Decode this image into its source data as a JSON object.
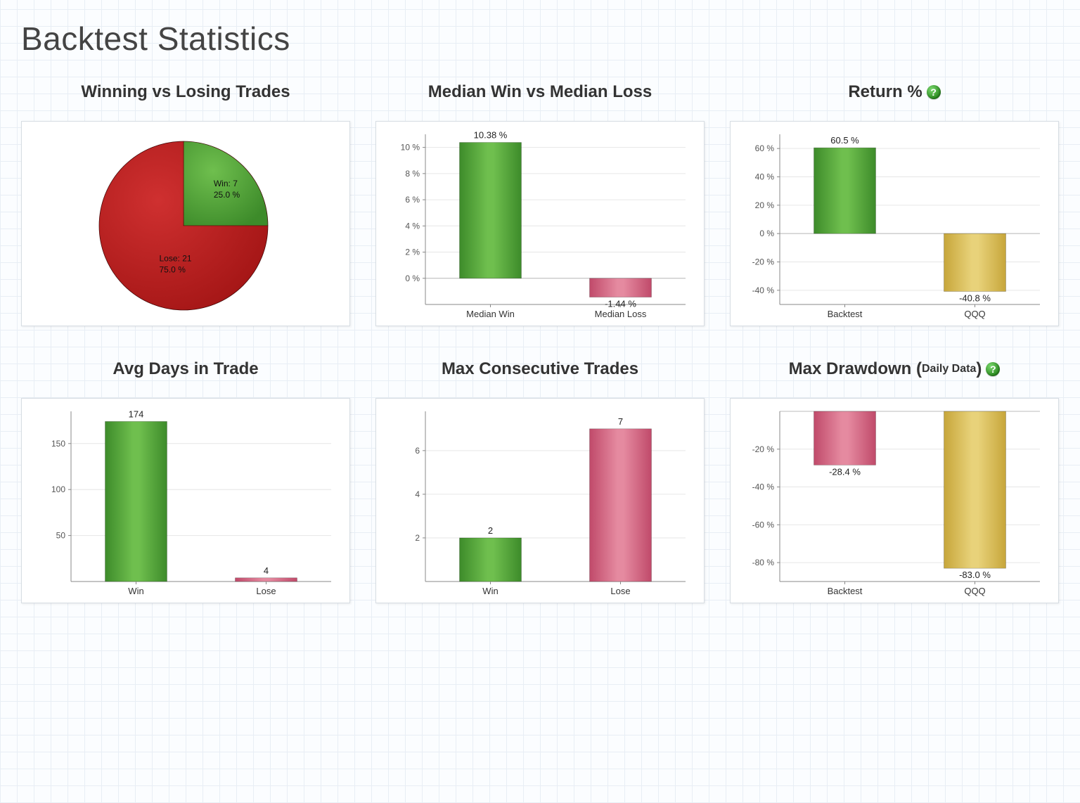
{
  "page": {
    "title": "Backtest Statistics"
  },
  "colors": {
    "green": "#3d8b2a",
    "green_hi": "#6fbf4e",
    "red": "#a31515",
    "red_hi": "#cf3030",
    "pink": "#c04a6a",
    "pink_hi": "#e58aa0",
    "gold": "#c7a63a",
    "gold_hi": "#e8d27a",
    "grid": "#e6e6e6",
    "axis": "#888888"
  },
  "pie": {
    "title": "Winning vs Losing Trades",
    "slices": [
      {
        "label_line1": "Win: 7",
        "label_line2": "25.0 %",
        "value": 25.0,
        "fill": "green"
      },
      {
        "label_line1": "Lose: 21",
        "label_line2": "75.0 %",
        "value": 75.0,
        "fill": "red"
      }
    ]
  },
  "median": {
    "title": "Median Win vs Median Loss",
    "ymin": -2,
    "ymax": 11,
    "yticks": [
      0,
      2,
      4,
      6,
      8,
      10
    ],
    "ytick_fmt": "%",
    "bars": [
      {
        "cat": "Median Win",
        "value": 10.38,
        "label": "10.38 %",
        "fill": "green"
      },
      {
        "cat": "Median Loss",
        "value": -1.44,
        "label": "-1.44 %",
        "fill": "pink"
      }
    ]
  },
  "return": {
    "title": "Return %",
    "help": true,
    "ymin": -50,
    "ymax": 70,
    "yticks": [
      -40,
      -20,
      0,
      20,
      40,
      60
    ],
    "ytick_fmt": "%",
    "bars": [
      {
        "cat": "Backtest",
        "value": 60.5,
        "label": "60.5 %",
        "fill": "green",
        "label_pos": "above"
      },
      {
        "cat": "QQQ",
        "value": -40.8,
        "label": "-40.8 %",
        "fill": "gold",
        "label_pos": "below"
      }
    ]
  },
  "avgdays": {
    "title": "Avg Days in Trade",
    "ymin": 0,
    "ymax": 185,
    "yticks": [
      50,
      100,
      150
    ],
    "ytick_fmt": "",
    "bars": [
      {
        "cat": "Win",
        "value": 174,
        "label": "174",
        "fill": "green",
        "label_pos": "above"
      },
      {
        "cat": "Lose",
        "value": 4,
        "label": "4",
        "fill": "pink",
        "label_pos": "above"
      }
    ]
  },
  "maxcons": {
    "title": "Max Consecutive Trades",
    "ymin": 0,
    "ymax": 7.8,
    "yticks": [
      2,
      4,
      6
    ],
    "ytick_fmt": "",
    "bars": [
      {
        "cat": "Win",
        "value": 2,
        "label": "2",
        "fill": "green",
        "label_pos": "above"
      },
      {
        "cat": "Lose",
        "value": 7,
        "label": "7",
        "fill": "pink",
        "label_pos": "above"
      }
    ]
  },
  "drawdown": {
    "title_main": "Max Drawdown (",
    "title_sub": "Daily Data",
    "title_close": ")",
    "help": true,
    "ymin": -90,
    "ymax": 0,
    "yticks": [
      -80,
      -60,
      -40,
      -20
    ],
    "ytick_fmt": "%",
    "bars": [
      {
        "cat": "Backtest",
        "value": -28.4,
        "label": "-28.4 %",
        "fill": "pink",
        "label_pos": "below"
      },
      {
        "cat": "QQQ",
        "value": -83.0,
        "label": "-83.0 %",
        "fill": "gold",
        "label_pos": "below"
      }
    ]
  }
}
